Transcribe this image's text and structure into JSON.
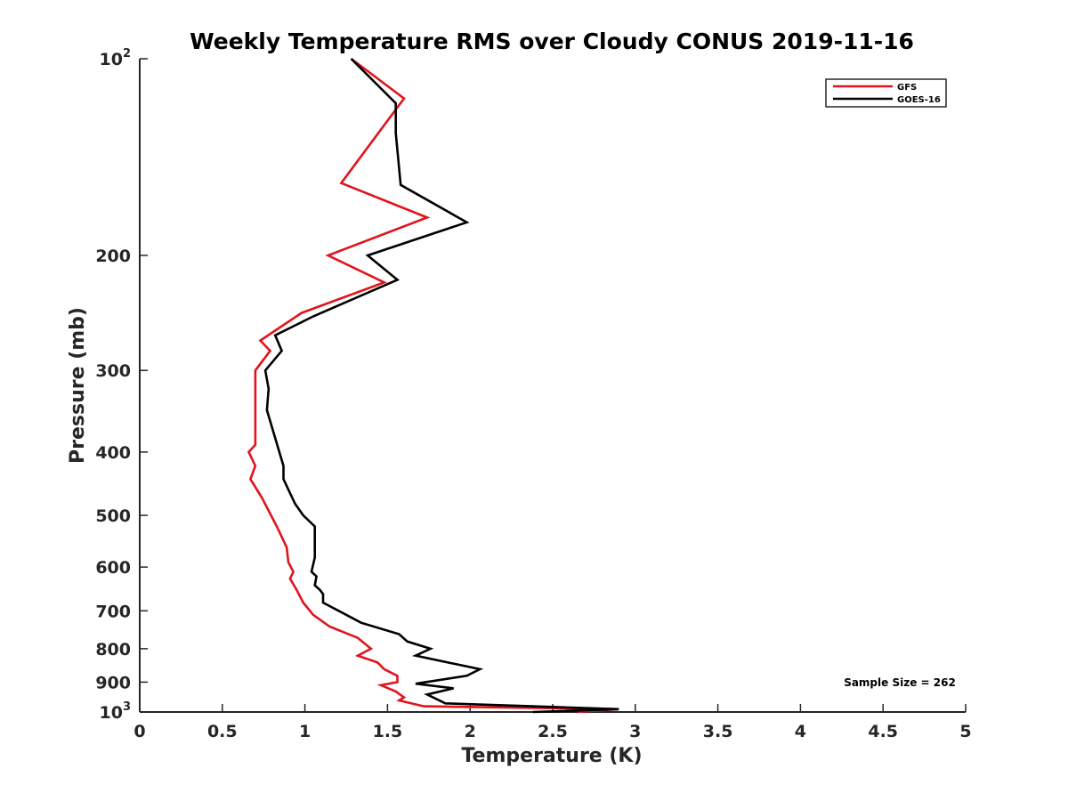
{
  "chart_data": {
    "type": "line",
    "title": "Weekly Temperature RMS over Cloudy CONUS 2019-11-16",
    "xlabel": "Temperature (K)",
    "ylabel": "Pressure (mb)",
    "xlim": [
      0,
      5
    ],
    "ylim": [
      100,
      1000
    ],
    "y_scale": "log",
    "y_reversed": true,
    "x_ticks": [
      "0",
      "0.5",
      "1",
      "1.5",
      "2",
      "2.5",
      "3",
      "3.5",
      "4",
      "4.5",
      "5"
    ],
    "y_ticks": [
      {
        "value": 100,
        "label": "10",
        "sup": "2"
      },
      {
        "value": 200,
        "label": "200"
      },
      {
        "value": 300,
        "label": "300"
      },
      {
        "value": 400,
        "label": "400"
      },
      {
        "value": 500,
        "label": "500"
      },
      {
        "value": 600,
        "label": "600"
      },
      {
        "value": 700,
        "label": "700"
      },
      {
        "value": 800,
        "label": "800"
      },
      {
        "value": 900,
        "label": "900"
      },
      {
        "value": 1000,
        "label": "10",
        "sup": "3"
      }
    ],
    "grid": false,
    "legend_position": "top-right",
    "annotation": "Sample Size = 262",
    "series": [
      {
        "name": "GFS",
        "color": "#e0141c",
        "points": [
          [
            1.28,
            100
          ],
          [
            1.6,
            115
          ],
          [
            1.22,
            155
          ],
          [
            1.74,
            175
          ],
          [
            1.14,
            200
          ],
          [
            1.48,
            220
          ],
          [
            0.98,
            245
          ],
          [
            0.73,
            270
          ],
          [
            0.79,
            280
          ],
          [
            0.7,
            300
          ],
          [
            0.7,
            350
          ],
          [
            0.7,
            390
          ],
          [
            0.66,
            400
          ],
          [
            0.7,
            420
          ],
          [
            0.67,
            440
          ],
          [
            0.74,
            470
          ],
          [
            0.83,
            520
          ],
          [
            0.89,
            560
          ],
          [
            0.9,
            590
          ],
          [
            0.93,
            610
          ],
          [
            0.91,
            625
          ],
          [
            0.95,
            650
          ],
          [
            0.99,
            680
          ],
          [
            1.05,
            710
          ],
          [
            1.15,
            740
          ],
          [
            1.32,
            770
          ],
          [
            1.4,
            800
          ],
          [
            1.32,
            820
          ],
          [
            1.44,
            840
          ],
          [
            1.48,
            860
          ],
          [
            1.56,
            880
          ],
          [
            1.56,
            900
          ],
          [
            1.46,
            910
          ],
          [
            1.55,
            930
          ],
          [
            1.6,
            950
          ],
          [
            1.57,
            960
          ],
          [
            1.72,
            980
          ],
          [
            2.9,
            990
          ],
          [
            2.65,
            1000
          ]
        ]
      },
      {
        "name": "GOES-16",
        "color": "#000000",
        "points": [
          [
            1.28,
            100
          ],
          [
            1.55,
            117
          ],
          [
            1.55,
            130
          ],
          [
            1.58,
            156
          ],
          [
            1.98,
            178
          ],
          [
            1.38,
            200
          ],
          [
            1.56,
            218
          ],
          [
            1.05,
            248
          ],
          [
            0.82,
            265
          ],
          [
            0.86,
            280
          ],
          [
            0.76,
            300
          ],
          [
            0.78,
            320
          ],
          [
            0.77,
            345
          ],
          [
            0.87,
            420
          ],
          [
            0.87,
            440
          ],
          [
            0.94,
            480
          ],
          [
            0.99,
            500
          ],
          [
            1.06,
            520
          ],
          [
            1.06,
            580
          ],
          [
            1.04,
            610
          ],
          [
            1.07,
            620
          ],
          [
            1.06,
            640
          ],
          [
            1.09,
            650
          ],
          [
            1.11,
            660
          ],
          [
            1.11,
            680
          ],
          [
            1.25,
            710
          ],
          [
            1.34,
            730
          ],
          [
            1.57,
            760
          ],
          [
            1.62,
            780
          ],
          [
            1.76,
            800
          ],
          [
            1.67,
            820
          ],
          [
            2.06,
            860
          ],
          [
            1.98,
            880
          ],
          [
            1.67,
            905
          ],
          [
            1.9,
            920
          ],
          [
            1.74,
            940
          ],
          [
            1.85,
            970
          ],
          [
            2.9,
            990
          ],
          [
            2.38,
            1000
          ]
        ]
      }
    ]
  }
}
